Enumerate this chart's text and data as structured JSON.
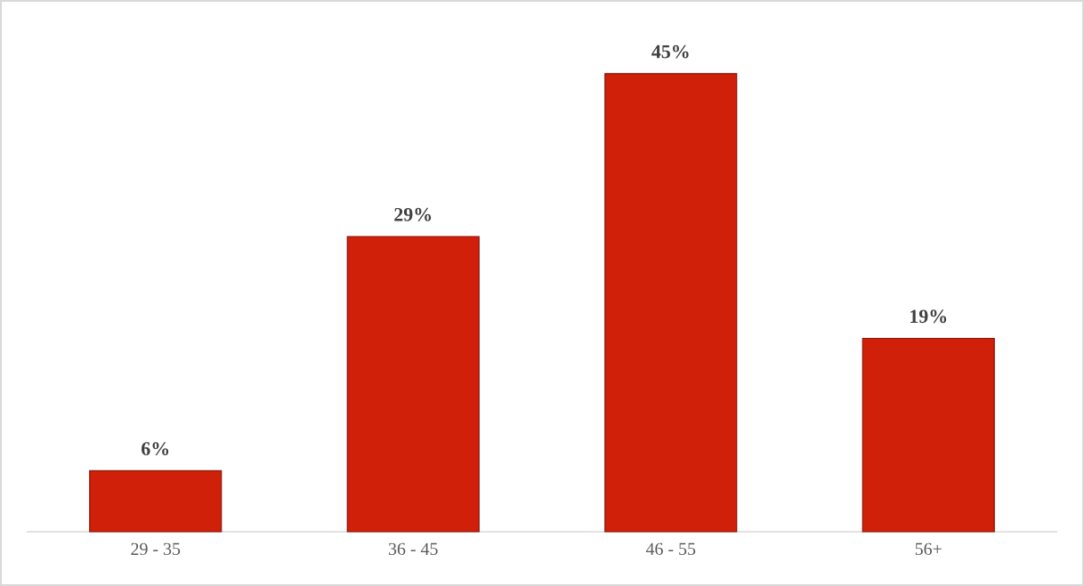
{
  "chart_data": {
    "type": "bar",
    "categories": [
      "29 - 35",
      "36 - 45",
      "46 - 55",
      "56+"
    ],
    "values": [
      6,
      29,
      45,
      19
    ],
    "color": "#d0200a",
    "value_labels": [
      "6%",
      "29%",
      "45%",
      "19%"
    ]
  }
}
